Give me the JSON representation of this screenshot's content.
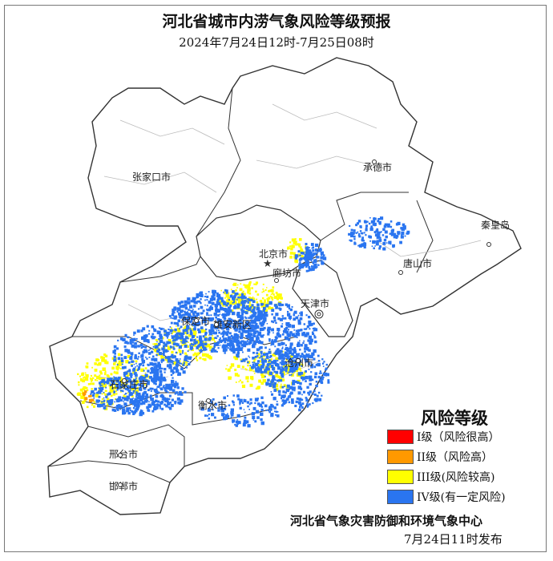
{
  "title": "河北省城市内涝气象风险等级预报",
  "subtitle": "2024年7月24日12时-7月25日08时",
  "cities": [
    {
      "name": "张家口市",
      "marker": "circle"
    },
    {
      "name": "承德市",
      "marker": "circle"
    },
    {
      "name": "秦皇岛",
      "marker": "circle"
    },
    {
      "name": "唐山市",
      "marker": "circle"
    },
    {
      "name": "北京市",
      "marker": "star"
    },
    {
      "name": "廊坊市",
      "marker": "circle"
    },
    {
      "name": "天津市",
      "marker": "double-circle"
    },
    {
      "name": "保定市",
      "marker": "circle"
    },
    {
      "name": "雄安新区",
      "marker": "circle"
    },
    {
      "name": "沧州市",
      "marker": "circle"
    },
    {
      "name": "石家庄市",
      "marker": "circle"
    },
    {
      "name": "衡水市",
      "marker": "circle"
    },
    {
      "name": "邢台市",
      "marker": "circle"
    },
    {
      "name": "邯郸市",
      "marker": "circle"
    }
  ],
  "legend": {
    "title": "风险等级",
    "items": [
      {
        "label": "I级（风险很高）",
        "color": "#ff0000"
      },
      {
        "label": "II级（风险高）",
        "color": "#ff9900"
      },
      {
        "label": "III级(风险较高)",
        "color": "#ffff00"
      },
      {
        "label": "IV级(有一定风险)",
        "color": "#2a75f0"
      }
    ]
  },
  "footer": {
    "org": "河北省气象灾害防御和环境气象中心",
    "issued": "7月24日11时发布"
  }
}
